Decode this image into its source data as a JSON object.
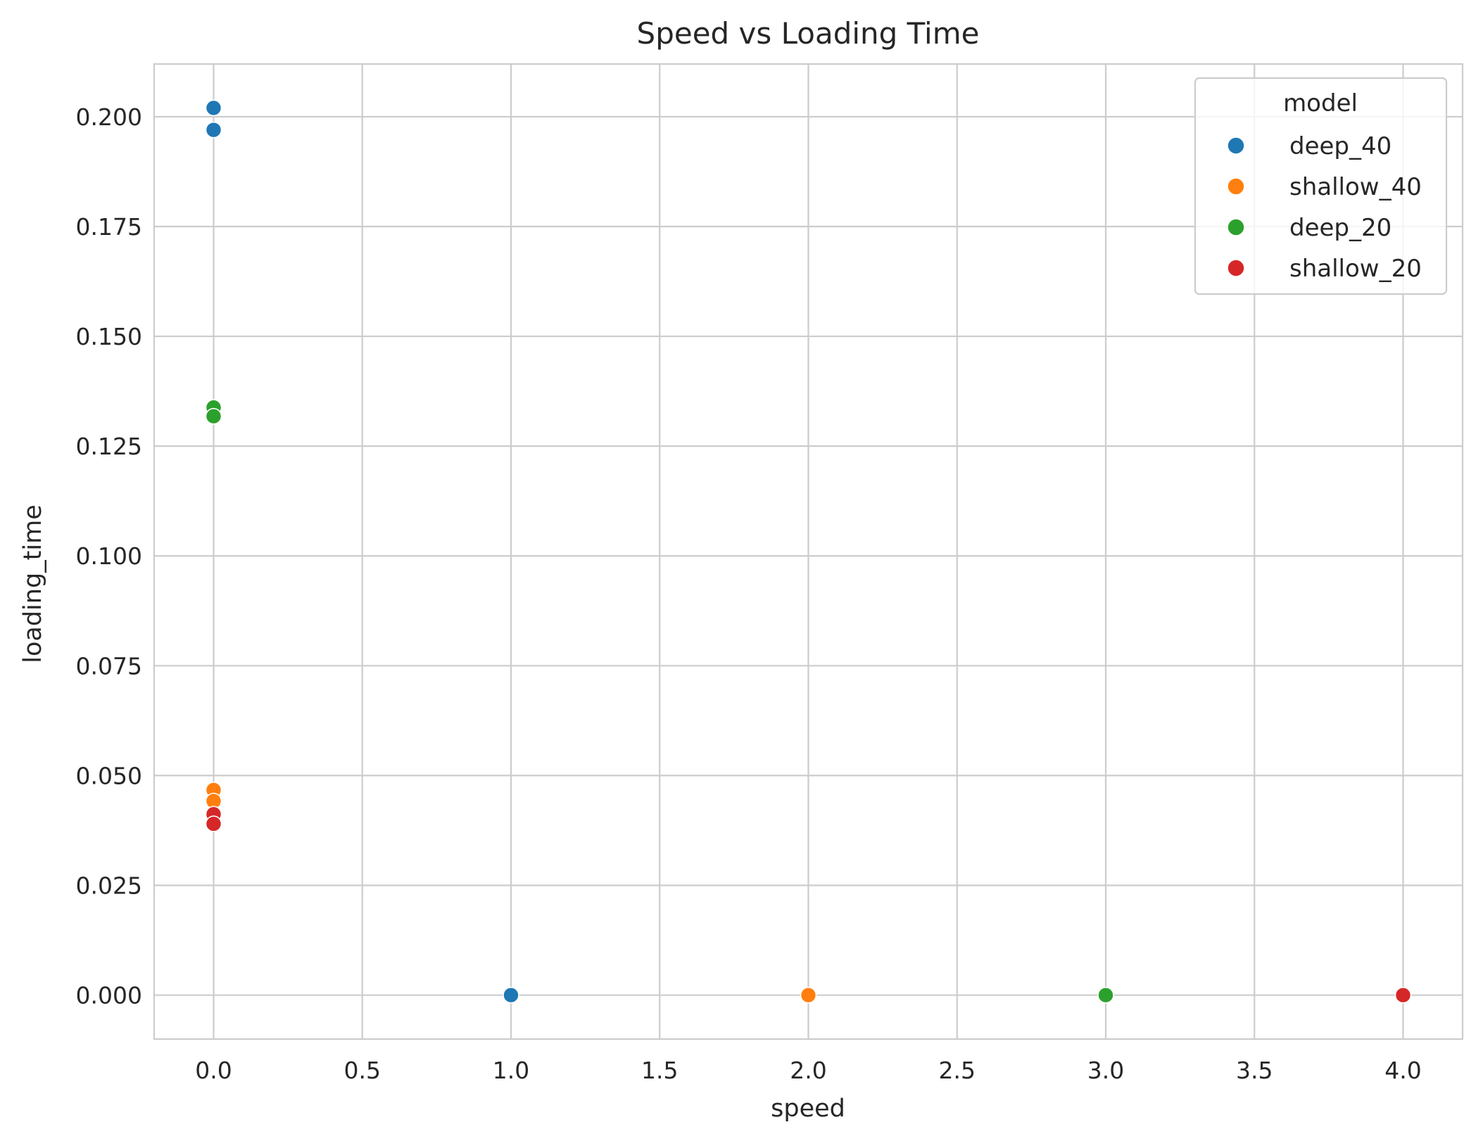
{
  "chart_data": {
    "type": "scatter",
    "title": "Speed vs Loading Time",
    "xlabel": "speed",
    "ylabel": "loading_time",
    "xlim": [
      -0.2,
      4.2
    ],
    "ylim": [
      -0.01,
      0.212
    ],
    "xticks": [
      0.0,
      0.5,
      1.0,
      1.5,
      2.0,
      2.5,
      3.0,
      3.5,
      4.0
    ],
    "xtick_labels": [
      "0.0",
      "0.5",
      "1.0",
      "1.5",
      "2.0",
      "2.5",
      "3.0",
      "3.5",
      "4.0"
    ],
    "yticks": [
      0.0,
      0.025,
      0.05,
      0.075,
      0.1,
      0.125,
      0.15,
      0.175,
      0.2
    ],
    "ytick_labels": [
      "0.000",
      "0.025",
      "0.050",
      "0.075",
      "0.100",
      "0.125",
      "0.150",
      "0.175",
      "0.200"
    ],
    "grid": true,
    "legend": {
      "title": "model",
      "placement": "top-right"
    },
    "series": [
      {
        "name": "deep_40",
        "color": "#1f77b4",
        "points": [
          [
            0,
            0.202
          ],
          [
            0,
            0.197
          ],
          [
            1,
            0.0
          ]
        ]
      },
      {
        "name": "shallow_40",
        "color": "#ff7f0e",
        "points": [
          [
            0,
            0.0467
          ],
          [
            0,
            0.0442
          ],
          [
            2,
            0.0
          ]
        ]
      },
      {
        "name": "deep_20",
        "color": "#2ca02c",
        "points": [
          [
            0,
            0.1338
          ],
          [
            0,
            0.1318
          ],
          [
            3,
            0.0
          ]
        ]
      },
      {
        "name": "shallow_20",
        "color": "#d62728",
        "points": [
          [
            0,
            0.0412
          ],
          [
            0,
            0.039
          ],
          [
            4,
            0.0
          ]
        ]
      }
    ]
  }
}
